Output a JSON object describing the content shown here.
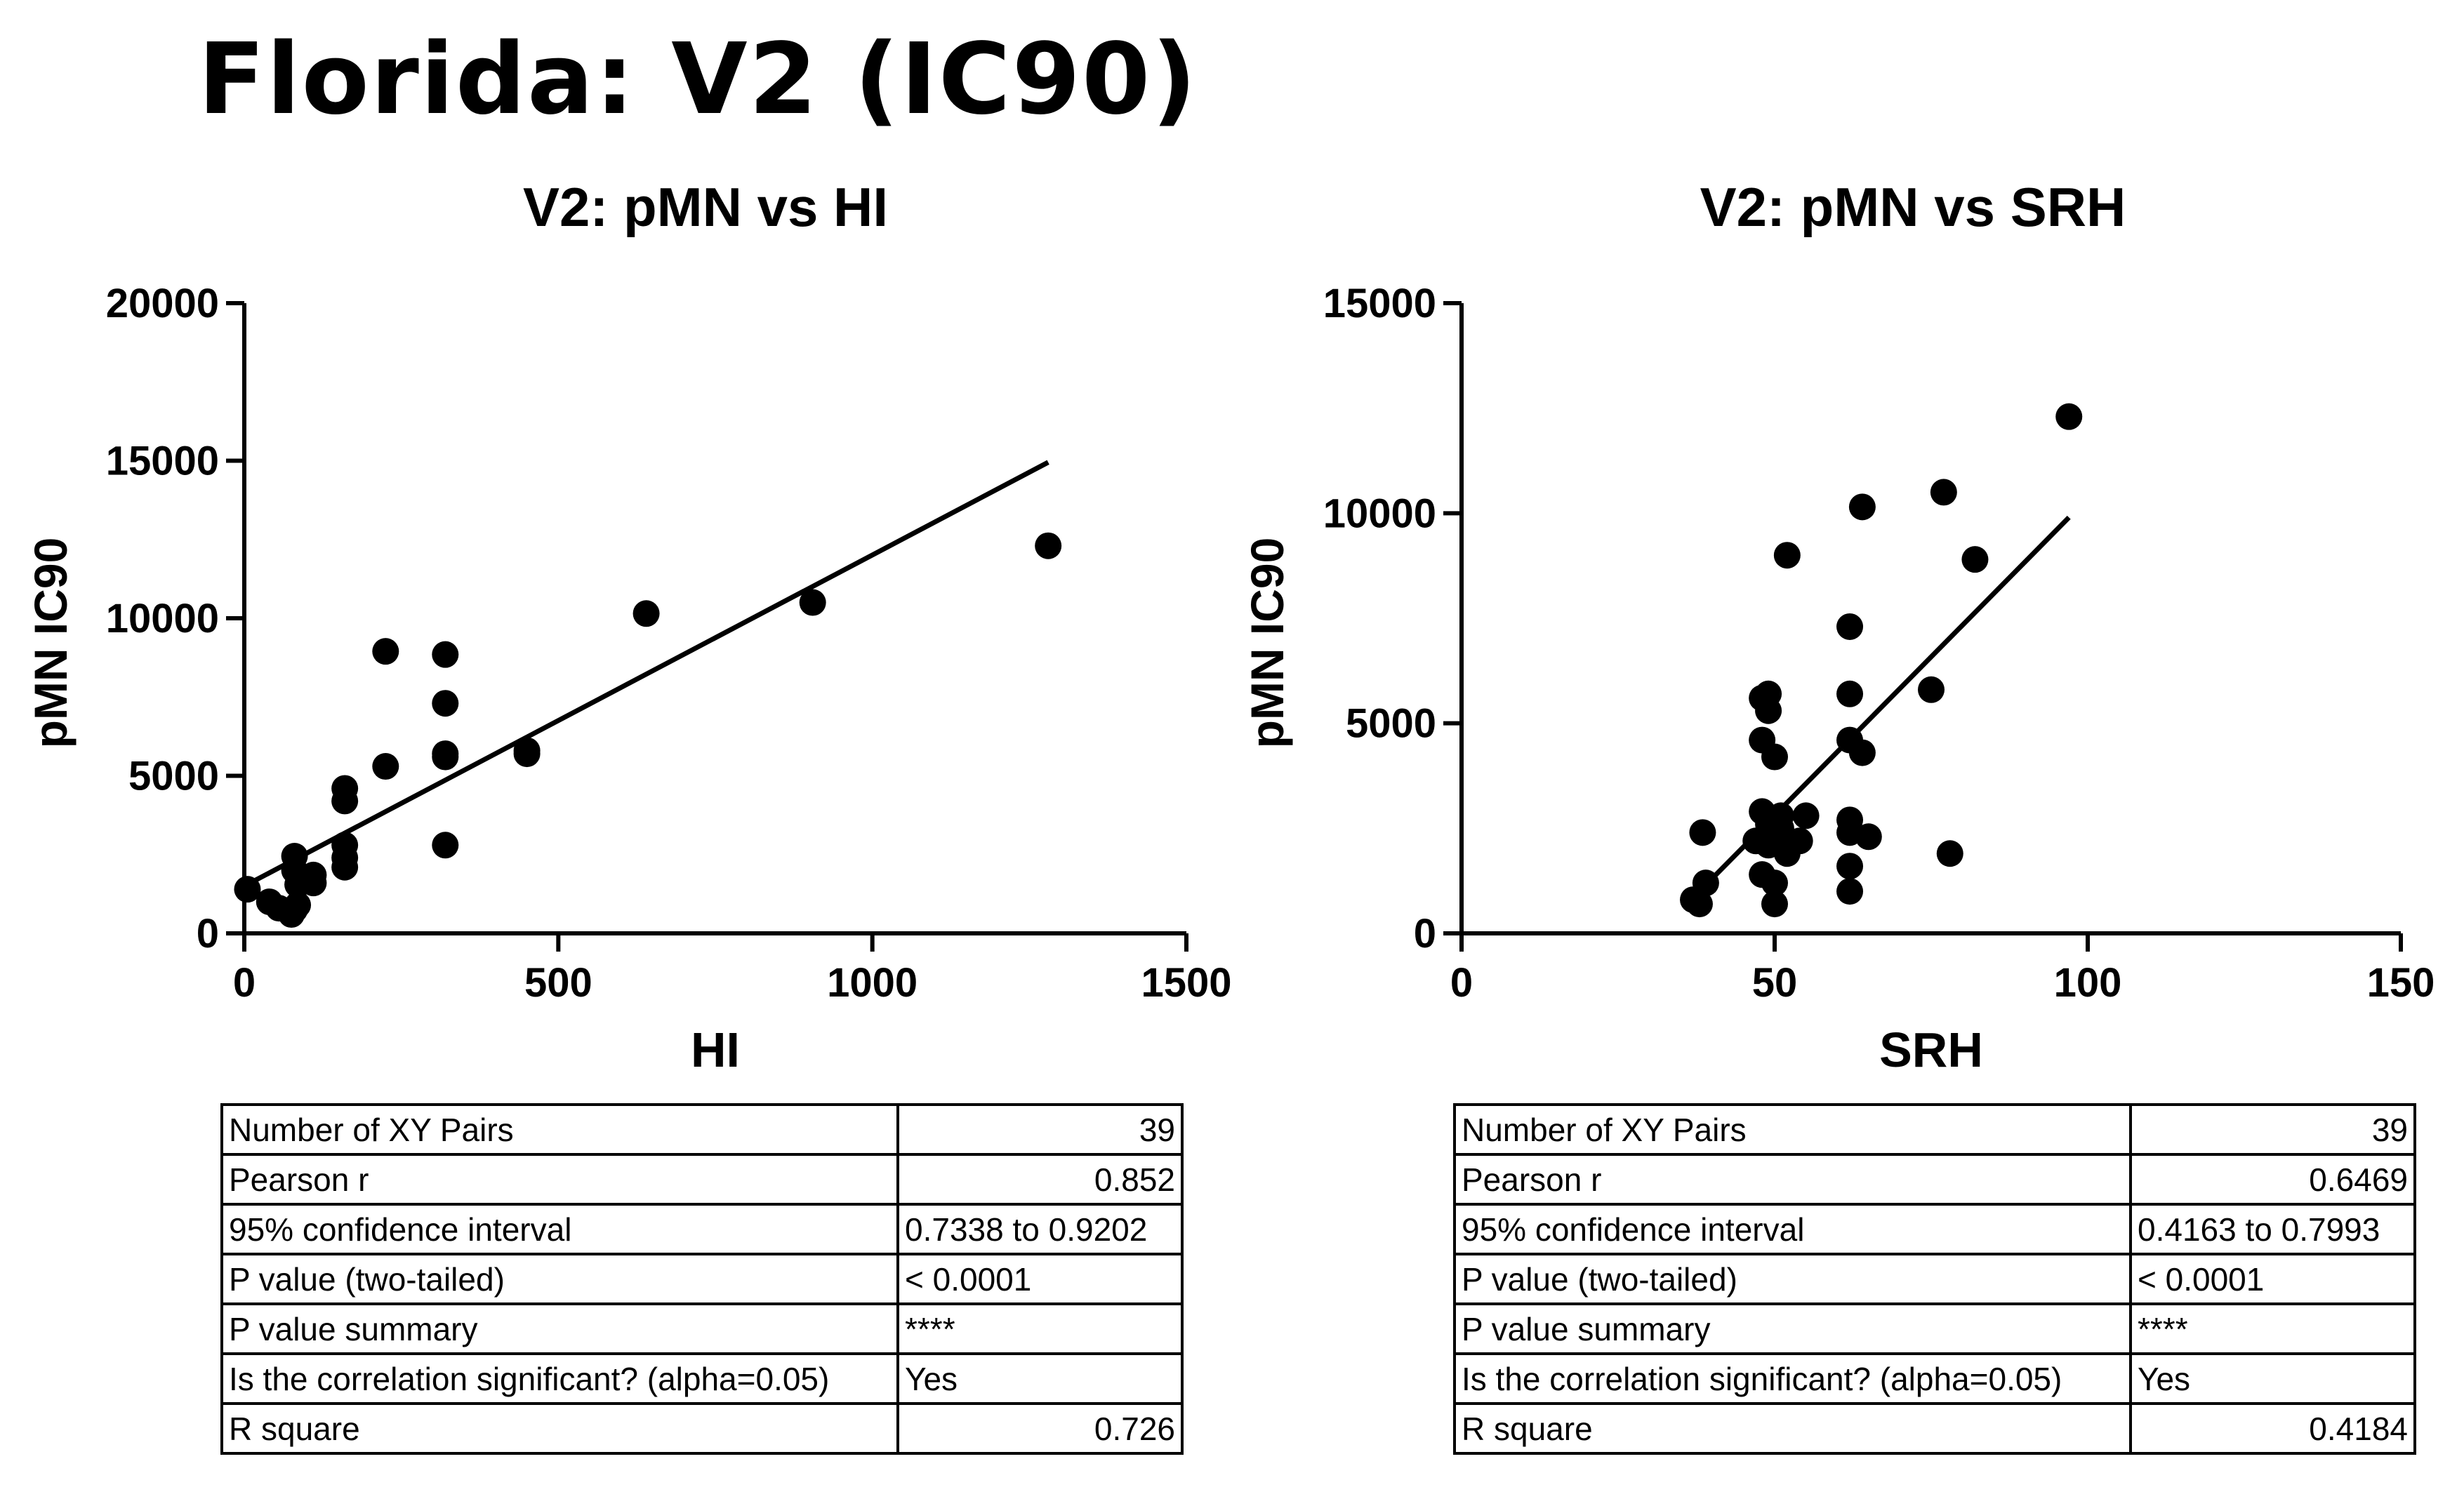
{
  "page_title": "Florida: V2 (IC90)",
  "chart_data": [
    {
      "type": "scatter",
      "title": "V2: pMN vs HI",
      "xlabel": "HI",
      "ylabel": "pMN IC90",
      "xlim": [
        0,
        1500
      ],
      "ylim": [
        0,
        20000
      ],
      "xticks": [
        "0",
        "500",
        "1000",
        "1500"
      ],
      "yticks": [
        "0",
        "5000",
        "10000",
        "15000",
        "20000"
      ],
      "points": [
        [
          5,
          1400
        ],
        [
          40,
          1000
        ],
        [
          55,
          800
        ],
        [
          75,
          600
        ],
        [
          80,
          750
        ],
        [
          85,
          900
        ],
        [
          80,
          2450
        ],
        [
          80,
          2000
        ],
        [
          85,
          1550
        ],
        [
          110,
          1850
        ],
        [
          110,
          1600
        ],
        [
          160,
          2800
        ],
        [
          160,
          2400
        ],
        [
          160,
          2100
        ],
        [
          160,
          4600
        ],
        [
          160,
          4200
        ],
        [
          225,
          5300
        ],
        [
          225,
          8950
        ],
        [
          320,
          8850
        ],
        [
          320,
          7300
        ],
        [
          320,
          5700
        ],
        [
          320,
          5600
        ],
        [
          320,
          2800
        ],
        [
          450,
          5800
        ],
        [
          450,
          5700
        ],
        [
          640,
          10150
        ],
        [
          905,
          10500
        ],
        [
          1280,
          12300
        ]
      ],
      "fit_line": {
        "x": [
          0,
          1280
        ],
        "y": [
          1500,
          14950
        ]
      },
      "stats": [
        {
          "label": "Number of XY Pairs",
          "value": "39"
        },
        {
          "label": "Pearson r",
          "value": "0.852"
        },
        {
          "label": "95% confidence interval",
          "value": "0.7338 to 0.9202"
        },
        {
          "label": "P value (two-tailed)",
          "value": "< 0.0001"
        },
        {
          "label": "P value summary",
          "value": "****"
        },
        {
          "label": "Is the correlation significant? (alpha=0.05)",
          "value": "Yes"
        },
        {
          "label": "R square",
          "value": "0.726"
        }
      ]
    },
    {
      "type": "scatter",
      "title": "V2: pMN vs SRH",
      "xlabel": "SRH",
      "ylabel": "pMN IC90",
      "xlim": [
        0,
        150
      ],
      "ylim": [
        0,
        15000
      ],
      "xticks": [
        "0",
        "50",
        "100",
        "150"
      ],
      "yticks": [
        "0",
        "5000",
        "10000",
        "15000"
      ],
      "points": [
        [
          37,
          800
        ],
        [
          38,
          700
        ],
        [
          38.5,
          2400
        ],
        [
          39,
          1200
        ],
        [
          47,
          2200
        ],
        [
          48,
          2900
        ],
        [
          48,
          5600
        ],
        [
          48,
          4600
        ],
        [
          48,
          1400
        ],
        [
          49,
          2600
        ],
        [
          49,
          2100
        ],
        [
          49,
          5700
        ],
        [
          49,
          5300
        ],
        [
          50,
          4200
        ],
        [
          50,
          1200
        ],
        [
          50,
          700
        ],
        [
          51,
          2500
        ],
        [
          51,
          2800
        ],
        [
          52,
          2100
        ],
        [
          52,
          1900
        ],
        [
          52,
          9000
        ],
        [
          54,
          2200
        ],
        [
          55,
          2800
        ],
        [
          62,
          7300
        ],
        [
          62,
          5700
        ],
        [
          62,
          4600
        ],
        [
          62,
          2700
        ],
        [
          62,
          2400
        ],
        [
          62,
          1600
        ],
        [
          62,
          1000
        ],
        [
          64,
          10150
        ],
        [
          64,
          4300
        ],
        [
          65,
          2300
        ],
        [
          75,
          5800
        ],
        [
          77,
          10500
        ],
        [
          78,
          1900
        ],
        [
          82,
          8900
        ],
        [
          97,
          12300
        ]
      ],
      "fit_line": {
        "x": [
          38,
          97
        ],
        "y": [
          1000,
          9900
        ]
      },
      "stats": [
        {
          "label": "Number of XY Pairs",
          "value": "39"
        },
        {
          "label": "Pearson r",
          "value": "0.6469"
        },
        {
          "label": "95% confidence interval",
          "value": "0.4163 to 0.7993"
        },
        {
          "label": "P value (two-tailed)",
          "value": "< 0.0001"
        },
        {
          "label": "P value summary",
          "value": "****"
        },
        {
          "label": "Is the correlation significant? (alpha=0.05)",
          "value": "Yes"
        },
        {
          "label": "R square",
          "value": "0.4184"
        }
      ]
    }
  ]
}
